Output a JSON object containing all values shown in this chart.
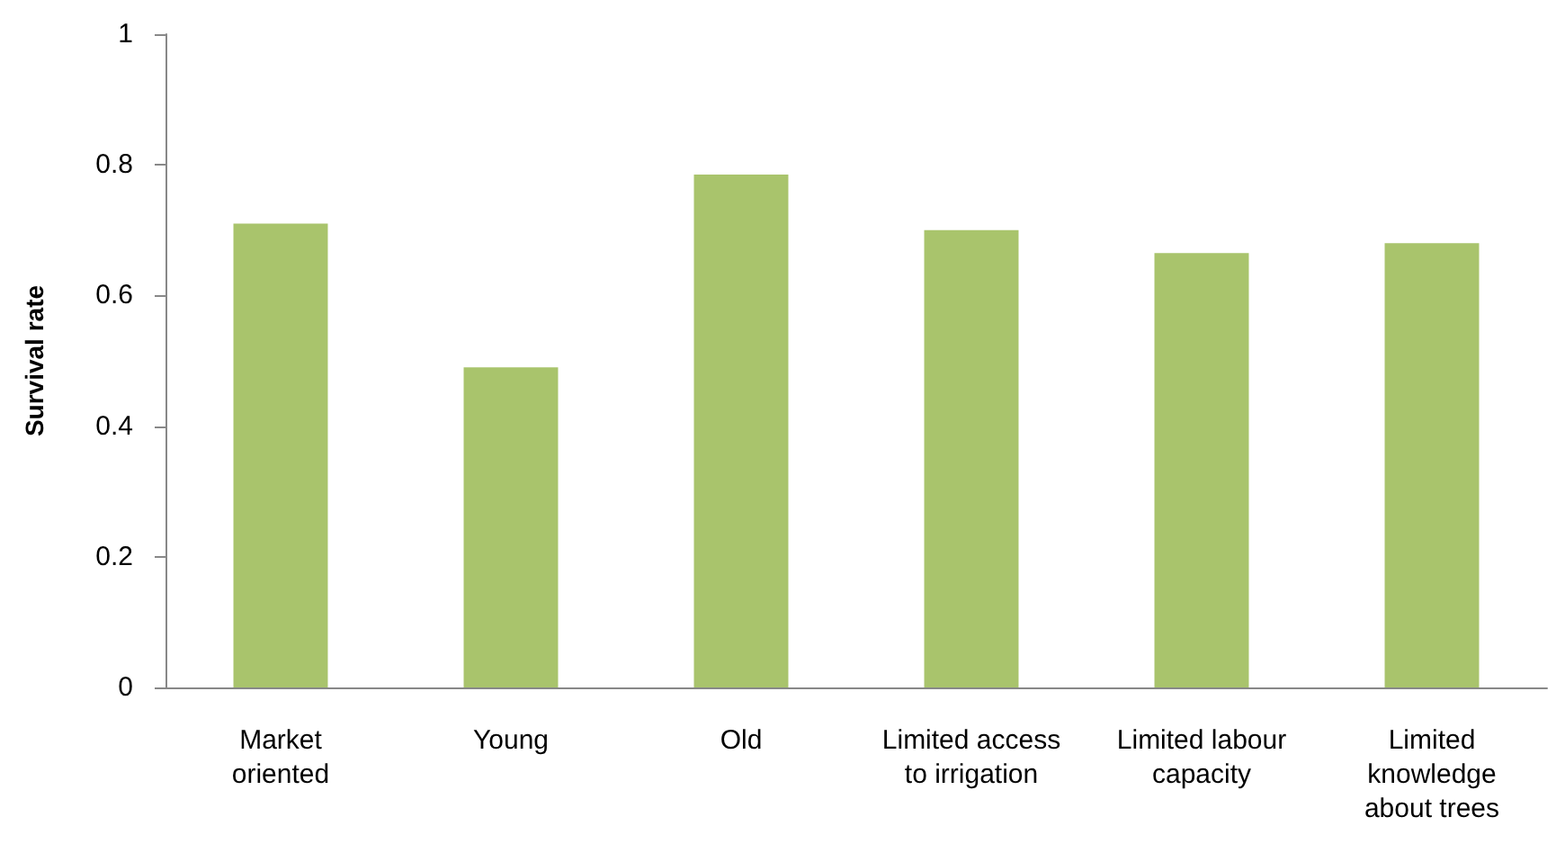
{
  "chart_data": {
    "type": "bar",
    "ylabel": "Survival rate",
    "categories": [
      "Market\noriented",
      "Young",
      "Old",
      "Limited access\nto irrigation",
      "Limited labour\ncapacity",
      "Limited\nknowledge\nabout trees"
    ],
    "values": [
      0.71,
      0.49,
      0.785,
      0.7,
      0.665,
      0.68
    ],
    "color": "#a9c46c",
    "ylim": [
      0,
      1
    ],
    "yticks": [
      0,
      0.2,
      0.4,
      0.6,
      0.8,
      1
    ],
    "grid": false
  }
}
